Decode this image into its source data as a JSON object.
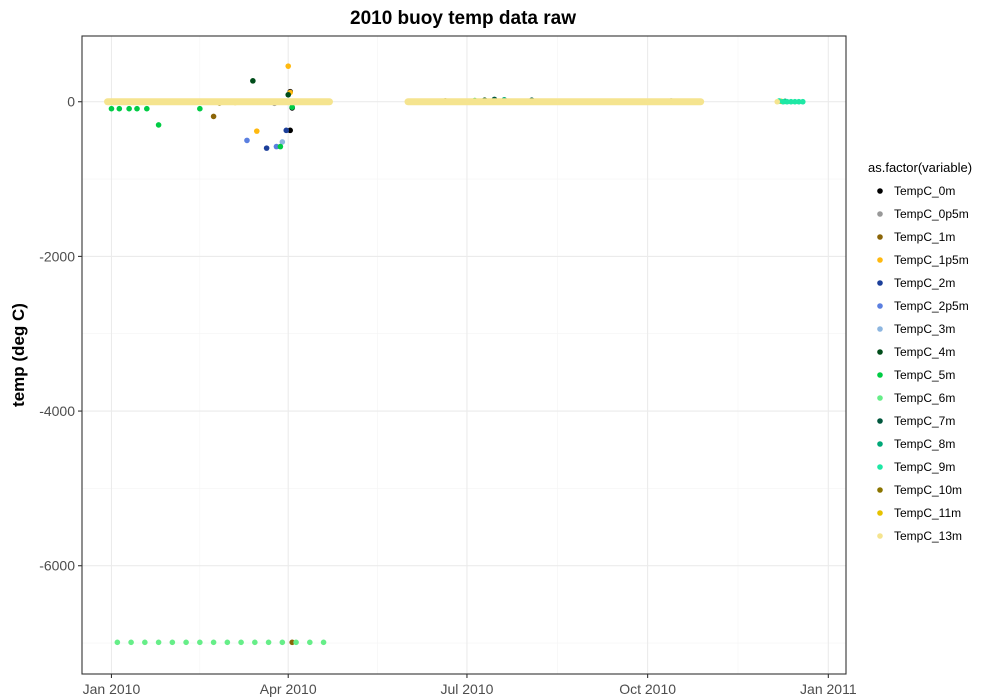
{
  "chart_data": {
    "type": "scatter",
    "title": "2010 buoy temp data raw",
    "xlabel": "",
    "ylabel": "temp (deg C)",
    "x_type": "date",
    "xlim": [
      "2009-12-17",
      "2011-01-10"
    ],
    "ylim": [
      -7400,
      850
    ],
    "x_ticks": [
      {
        "value": "2010-01-01",
        "label": "Jan 2010"
      },
      {
        "value": "2010-04-01",
        "label": "Apr 2010"
      },
      {
        "value": "2010-07-01",
        "label": "Jul 2010"
      },
      {
        "value": "2010-10-01",
        "label": "Oct 2010"
      },
      {
        "value": "2011-01-01",
        "label": "Jan 2011"
      }
    ],
    "y_ticks": [
      {
        "value": 0,
        "label": "0"
      },
      {
        "value": -2000,
        "label": "-2000"
      },
      {
        "value": -4000,
        "label": "-4000"
      },
      {
        "value": -6000,
        "label": "-6000"
      }
    ],
    "grid": true,
    "legend": {
      "title": "as.factor(variable)",
      "placement": "right"
    },
    "series": [
      {
        "name": "TempC_0m",
        "color": "#000000",
        "points": [
          [
            "2010-04-02",
            130
          ],
          [
            "2010-04-02",
            -370
          ],
          [
            "2010-04-03",
            -80
          ]
        ]
      },
      {
        "name": "TempC_0p5m",
        "color": "#999999",
        "points": [
          [
            "2010-03-25",
            -20
          ],
          [
            "2010-10-13",
            10
          ],
          [
            "2010-10-18",
            5
          ]
        ]
      },
      {
        "name": "TempC_1m",
        "color": "#8B6508",
        "points": [
          [
            "2010-02-22",
            -190
          ],
          [
            "2010-04-03",
            -6990
          ]
        ]
      },
      {
        "name": "TempC_1p5m",
        "color": "#FFB90F",
        "points": [
          [
            "2010-03-16",
            -380
          ],
          [
            "2010-04-01",
            460
          ],
          [
            "2010-04-02",
            120
          ],
          [
            "2010-12-08",
            5
          ]
        ]
      },
      {
        "name": "TempC_2m",
        "color": "#1C3F9A",
        "points": [
          [
            "2010-03-21",
            -600
          ],
          [
            "2010-03-31",
            -370
          ]
        ]
      },
      {
        "name": "TempC_2p5m",
        "color": "#5B7FE0",
        "points": [
          [
            "2010-03-11",
            -500
          ],
          [
            "2010-03-26",
            -580
          ]
        ]
      },
      {
        "name": "TempC_3m",
        "color": "#8DB6E0",
        "points": [
          [
            "2010-03-29",
            -520
          ]
        ]
      },
      {
        "name": "TempC_4m",
        "color": "#004D1A",
        "points": [
          [
            "2010-03-14",
            270
          ],
          [
            "2010-04-01",
            90
          ],
          [
            "2010-07-10",
            20
          ]
        ]
      },
      {
        "name": "TempC_5m",
        "color": "#00CC44",
        "points": [
          [
            "2010-01-01",
            -90
          ],
          [
            "2010-01-05",
            -90
          ],
          [
            "2010-01-10",
            -90
          ],
          [
            "2010-01-14",
            -90
          ],
          [
            "2010-01-19",
            -90
          ],
          [
            "2010-01-25",
            -300
          ],
          [
            "2010-02-15",
            -90
          ],
          [
            "2010-03-28",
            -580
          ],
          [
            "2010-04-03",
            -70
          ],
          [
            "2010-07-05",
            15
          ]
        ]
      },
      {
        "name": "TempC_6m",
        "color": "#66EE88",
        "points": [
          [
            "2010-01-04",
            -6990
          ],
          [
            "2010-01-11",
            -6990
          ],
          [
            "2010-01-18",
            -6990
          ],
          [
            "2010-01-25",
            -6990
          ],
          [
            "2010-02-01",
            -6990
          ],
          [
            "2010-02-08",
            -6990
          ],
          [
            "2010-02-15",
            -6990
          ],
          [
            "2010-02-22",
            -6990
          ],
          [
            "2010-03-01",
            -6990
          ],
          [
            "2010-03-08",
            -6990
          ],
          [
            "2010-03-15",
            -6990
          ],
          [
            "2010-03-22",
            -6990
          ],
          [
            "2010-03-29",
            -6990
          ],
          [
            "2010-04-05",
            -6990
          ],
          [
            "2010-04-12",
            -6990
          ],
          [
            "2010-04-19",
            -6990
          ]
        ]
      },
      {
        "name": "TempC_7m",
        "color": "#00573D",
        "points": [
          [
            "2010-07-15",
            30
          ],
          [
            "2010-08-03",
            20
          ]
        ]
      },
      {
        "name": "TempC_8m",
        "color": "#00A878",
        "points": [
          [
            "2010-07-20",
            25
          ],
          [
            "2010-12-10",
            5
          ]
        ]
      },
      {
        "name": "TempC_9m",
        "color": "#1EE8A5",
        "points": [
          [
            "2010-12-07",
            10
          ],
          [
            "2010-12-09",
            0
          ],
          [
            "2010-12-11",
            0
          ],
          [
            "2010-12-13",
            0
          ],
          [
            "2010-12-15",
            0
          ],
          [
            "2010-12-17",
            0
          ],
          [
            "2010-12-19",
            0
          ]
        ]
      },
      {
        "name": "TempC_10m",
        "color": "#8B7500",
        "points": [
          [
            "2010-02-25",
            -15
          ],
          [
            "2010-06-20",
            10
          ]
        ]
      },
      {
        "name": "TempC_11m",
        "color": "#E6C200",
        "points": [
          [
            "2010-03-05",
            -10
          ],
          [
            "2010-08-15",
            5
          ]
        ]
      },
      {
        "name": "TempC_13m",
        "color": "#F5E48F",
        "segments": [
          [
            "2009-12-30",
            "2010-04-22",
            0
          ],
          [
            "2010-06-01",
            "2010-10-28",
            0
          ]
        ],
        "points": [
          [
            "2010-01-01",
            0
          ],
          [
            "2010-01-15",
            0
          ],
          [
            "2010-02-01",
            0
          ],
          [
            "2010-02-15",
            0
          ],
          [
            "2010-03-01",
            0
          ],
          [
            "2010-03-15",
            0
          ],
          [
            "2010-04-01",
            0
          ],
          [
            "2010-04-15",
            0
          ],
          [
            "2010-06-05",
            0
          ],
          [
            "2010-07-01",
            0
          ],
          [
            "2010-08-01",
            0
          ],
          [
            "2010-09-01",
            0
          ],
          [
            "2010-10-01",
            0
          ],
          [
            "2010-10-25",
            0
          ],
          [
            "2010-12-06",
            0
          ]
        ]
      }
    ]
  }
}
